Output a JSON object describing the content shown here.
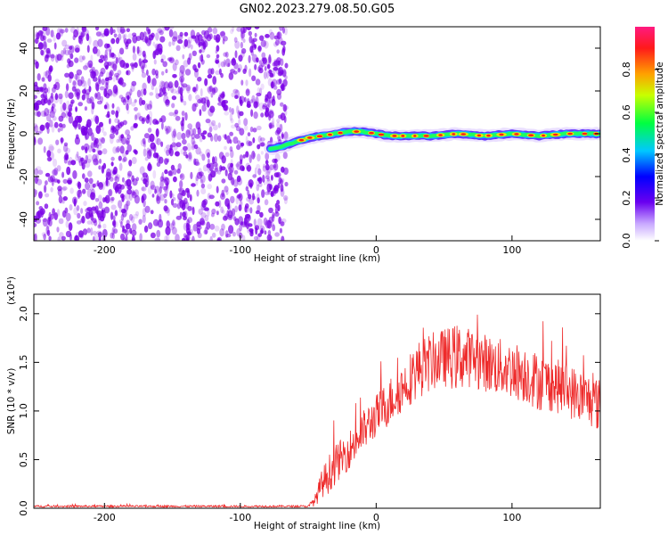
{
  "title": "GN02.2023.279.08.50.G05",
  "colors": {
    "snr_line": "#ee2b2b",
    "noise": "#7a00e6",
    "track_core": "#ff1a1a"
  },
  "chart_data": [
    {
      "type": "heatmap",
      "name": "spectrogram",
      "xlabel": "Height of straight line (km)",
      "ylabel": "Frequency (Hz)",
      "xlim": [
        -252,
        165
      ],
      "ylim": [
        -50,
        50
      ],
      "x_ticks": [
        -200,
        -100,
        0,
        100
      ],
      "y_ticks": [
        -40,
        -20,
        0,
        20,
        40
      ],
      "colorbar": {
        "label": "Normalized spectral amplitude",
        "range": [
          0.0,
          1.0
        ],
        "ticks": [
          "0.0",
          "0.2",
          "0.4",
          "0.6",
          "0.8"
        ]
      },
      "noise_region_x": [
        -252,
        -72
      ],
      "track": {
        "x": [
          -78,
          -70,
          -60,
          -50,
          -40,
          -30,
          -20,
          -10,
          0,
          10,
          20,
          40,
          60,
          80,
          100,
          120,
          140,
          165
        ],
        "freq": [
          -7,
          -6,
          -4,
          -2,
          -1,
          0,
          1,
          1,
          0,
          -1,
          -1,
          -1,
          0,
          -1,
          0,
          -1,
          0,
          0
        ]
      },
      "grid": false
    },
    {
      "type": "line",
      "name": "snr",
      "xlabel": "Height of straight line (km)",
      "ylabel": "SNR (10 * v/v)",
      "y_multiplier": "(x10⁴)",
      "xlim": [
        -252,
        165
      ],
      "ylim": [
        0,
        2.2
      ],
      "x_ticks": [
        -200,
        -100,
        0,
        100
      ],
      "y_ticks": [
        "0.0",
        "0.5",
        "1.0",
        "1.5",
        "2.0"
      ],
      "envelope": {
        "x": [
          -252,
          -50,
          -45,
          -40,
          -35,
          -30,
          -20,
          -10,
          0,
          10,
          20,
          30,
          40,
          50,
          60,
          70,
          80,
          90,
          100,
          110,
          120,
          130,
          140,
          150,
          160,
          165
        ],
        "mean": [
          0.02,
          0.02,
          0.08,
          0.25,
          0.35,
          0.45,
          0.6,
          0.78,
          0.95,
          1.1,
          1.25,
          1.42,
          1.5,
          1.55,
          1.55,
          1.55,
          1.5,
          1.45,
          1.42,
          1.38,
          1.3,
          1.27,
          1.22,
          1.15,
          1.1,
          1.05
        ],
        "spread": [
          0.01,
          0.01,
          0.06,
          0.15,
          0.2,
          0.2,
          0.2,
          0.22,
          0.22,
          0.25,
          0.25,
          0.3,
          0.3,
          0.3,
          0.35,
          0.3,
          0.3,
          0.3,
          0.3,
          0.3,
          0.3,
          0.28,
          0.28,
          0.28,
          0.28,
          0.28
        ]
      },
      "grid": false
    }
  ]
}
